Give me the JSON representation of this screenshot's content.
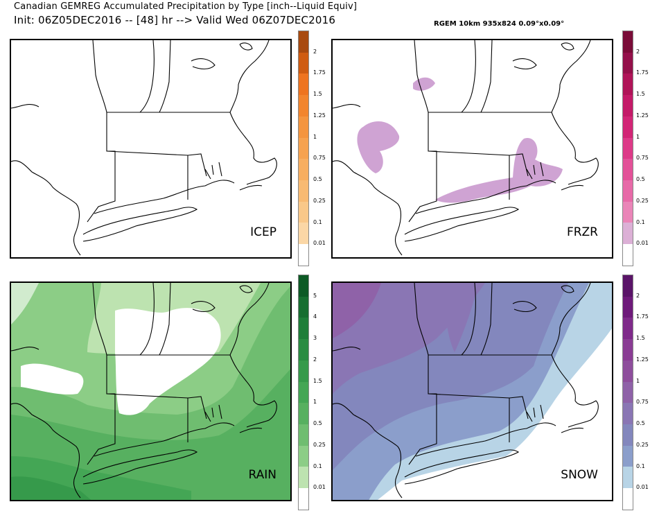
{
  "header": {
    "title_line1": "Canadian GEMREG Accumulated Precipitation by Type [inch--Liquid Equiv]",
    "title_line2": "Init: 06Z05DEC2016 -- [48] hr --> Valid Wed 06Z07DEC2016",
    "model_info": "RGEM 10km 935x824 0.09°x0.09°"
  },
  "panels": [
    {
      "id": "icep",
      "label": "ICEP",
      "colorbar": {
        "ticks": [
          "2",
          "1.75",
          "1.5",
          "1.25",
          "1",
          "0.75",
          "0.5",
          "0.25",
          "0.1",
          "0.01"
        ],
        "colors": [
          "#a84a10",
          "#cf5c12",
          "#ee7420",
          "#f2852e",
          "#f4953f",
          "#f6a24f",
          "#f7ae60",
          "#f8ba72",
          "#f9c889",
          "#fbd7a6",
          "#ffffff"
        ]
      }
    },
    {
      "id": "frzr",
      "label": "FRZR",
      "colorbar": {
        "ticks": [
          "2",
          "1.75",
          "1.5",
          "1.25",
          "1",
          "0.75",
          "0.5",
          "0.25",
          "0.1",
          "0.01"
        ],
        "colors": [
          "#7a0c38",
          "#94104a",
          "#b01458",
          "#c41a68",
          "#d22576",
          "#dd3a88",
          "#e35198",
          "#e76aa8",
          "#ea85b8",
          "#dcb0d6",
          "#ffffff"
        ]
      }
    },
    {
      "id": "rain",
      "label": "RAIN",
      "colorbar": {
        "ticks": [
          "5",
          "4",
          "3",
          "2",
          "1.5",
          "1",
          "0.5",
          "0.25",
          "0.1",
          "0.01"
        ],
        "colors": [
          "#0d5a25",
          "#176e30",
          "#1f7e39",
          "#2a8c42",
          "#369a4b",
          "#44a655",
          "#57b060",
          "#6fbd70",
          "#8ccd86",
          "#bde3b0",
          "#ffffff"
        ]
      }
    },
    {
      "id": "snow",
      "label": "SNOW",
      "colorbar": {
        "ticks": [
          "2",
          "1.75",
          "1.5",
          "1.25",
          "1",
          "0.75",
          "0.5",
          "0.25",
          "0.1",
          "0.01"
        ],
        "colors": [
          "#5a1468",
          "#6e1a7a",
          "#7f2a8a",
          "#8a3c94",
          "#8e4e9c",
          "#8f62a8",
          "#8a76b4",
          "#8387bd",
          "#8b9ecb",
          "#b8d4e6",
          "#ffffff"
        ]
      }
    }
  ]
}
